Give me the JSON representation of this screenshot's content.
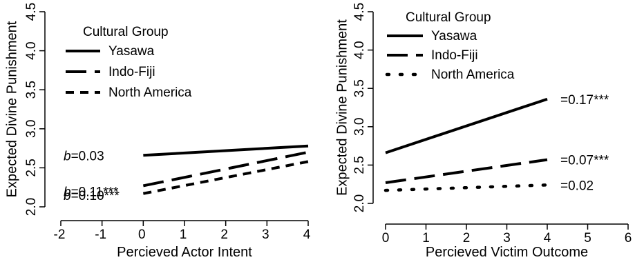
{
  "chart_data": [
    {
      "type": "line",
      "xlabel": "Percieved Actor Intent",
      "ylabel": "Expected Divine Punishment",
      "xlim": [
        -2,
        4
      ],
      "ylim": [
        2.0,
        4.5
      ],
      "xticks": [
        "-2",
        "-1",
        "0",
        "1",
        "2",
        "3",
        "4"
      ],
      "yticks": [
        "2.0",
        "2.5",
        "3.0",
        "3.5",
        "4.0",
        "4.5"
      ],
      "legend_title": "Cultural Group",
      "legend_placement": "top-left",
      "series": [
        {
          "name": "Yasawa",
          "style": "solid",
          "x": [
            0,
            4
          ],
          "y": [
            2.66,
            2.78
          ],
          "annotation": {
            "prefix": "b",
            "text": "=0.03"
          }
        },
        {
          "name": "Indo-Fiji",
          "style": "dashed",
          "x": [
            0,
            4
          ],
          "y": [
            2.27,
            2.7
          ],
          "annotation": {
            "prefix": "b",
            "text": "=0.11***"
          }
        },
        {
          "name": "North America",
          "style": "dotted-dash",
          "x": [
            0,
            4
          ],
          "y": [
            2.17,
            2.58
          ],
          "annotation": {
            "prefix": "b",
            "text": "=0.10***"
          }
        }
      ]
    },
    {
      "type": "line",
      "xlabel": "Percieved Victim Outcome",
      "ylabel": "Expected Divine Punishment",
      "xlim": [
        0,
        6
      ],
      "ylim": [
        2.0,
        4.5
      ],
      "xticks": [
        "0",
        "1",
        "2",
        "3",
        "4",
        "5",
        "6"
      ],
      "yticks": [
        "2.0",
        "2.5",
        "3.0",
        "3.5",
        "4.0",
        "4.5"
      ],
      "legend_title": "Cultural Group",
      "legend_placement": "top-left",
      "series": [
        {
          "name": "Yasawa",
          "style": "solid",
          "x": [
            0,
            4
          ],
          "y": [
            2.66,
            3.36
          ],
          "annotation": {
            "text": "=0.17***"
          }
        },
        {
          "name": "Indo-Fiji",
          "style": "dashed",
          "x": [
            0,
            4
          ],
          "y": [
            2.27,
            2.57
          ],
          "annotation": {
            "text": "=0.07***"
          }
        },
        {
          "name": "North America",
          "style": "dotted",
          "x": [
            0,
            4
          ],
          "y": [
            2.17,
            2.24
          ],
          "annotation": {
            "text": "=0.02"
          }
        }
      ]
    }
  ]
}
